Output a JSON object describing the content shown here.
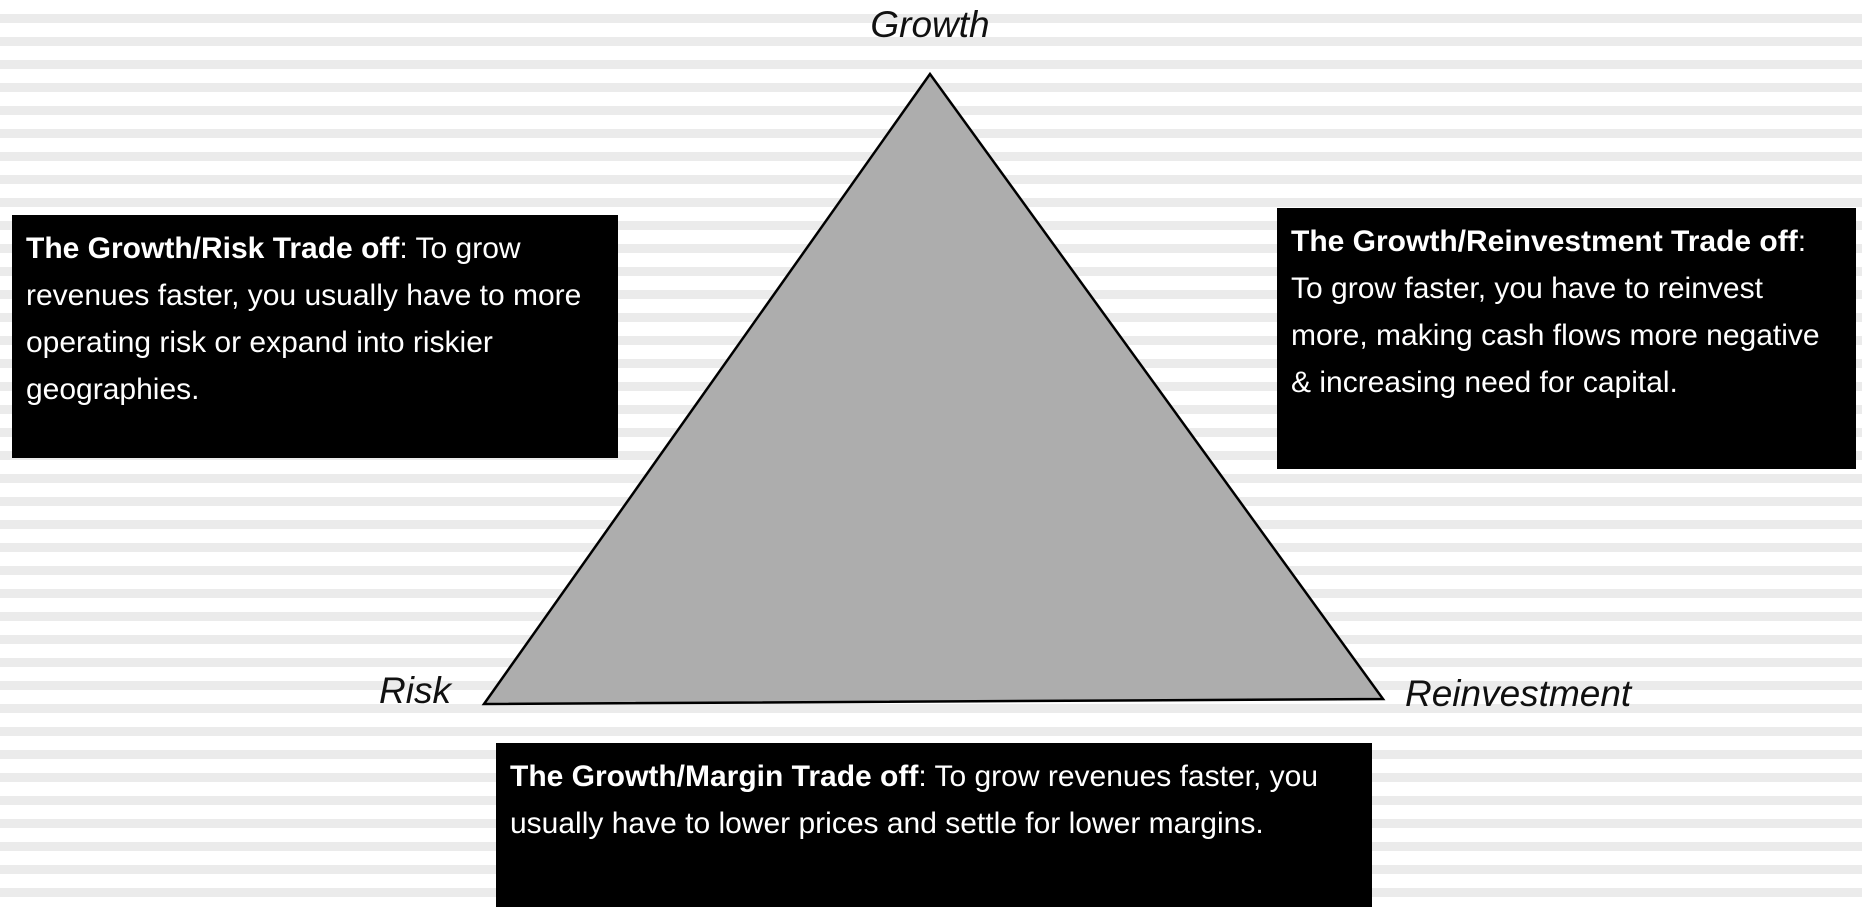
{
  "vertices": {
    "top": "Growth",
    "left": "Risk",
    "right": "Reinvestment"
  },
  "boxes": [
    {
      "bold": "The Growth/Risk Trade off",
      "text": ": To grow revenues faster, you usually have to more operating risk or expand into riskier geographies."
    },
    {
      "bold": "The Growth/Reinvestment Trade off",
      "text": ": To grow faster, you have to reinvest more, making cash flows more negative & increasing need for capital."
    },
    {
      "bold": "The Growth/Margin Trade off",
      "text": ": To grow revenues faster, you usually have to lower prices and settle for lower margins."
    }
  ]
}
